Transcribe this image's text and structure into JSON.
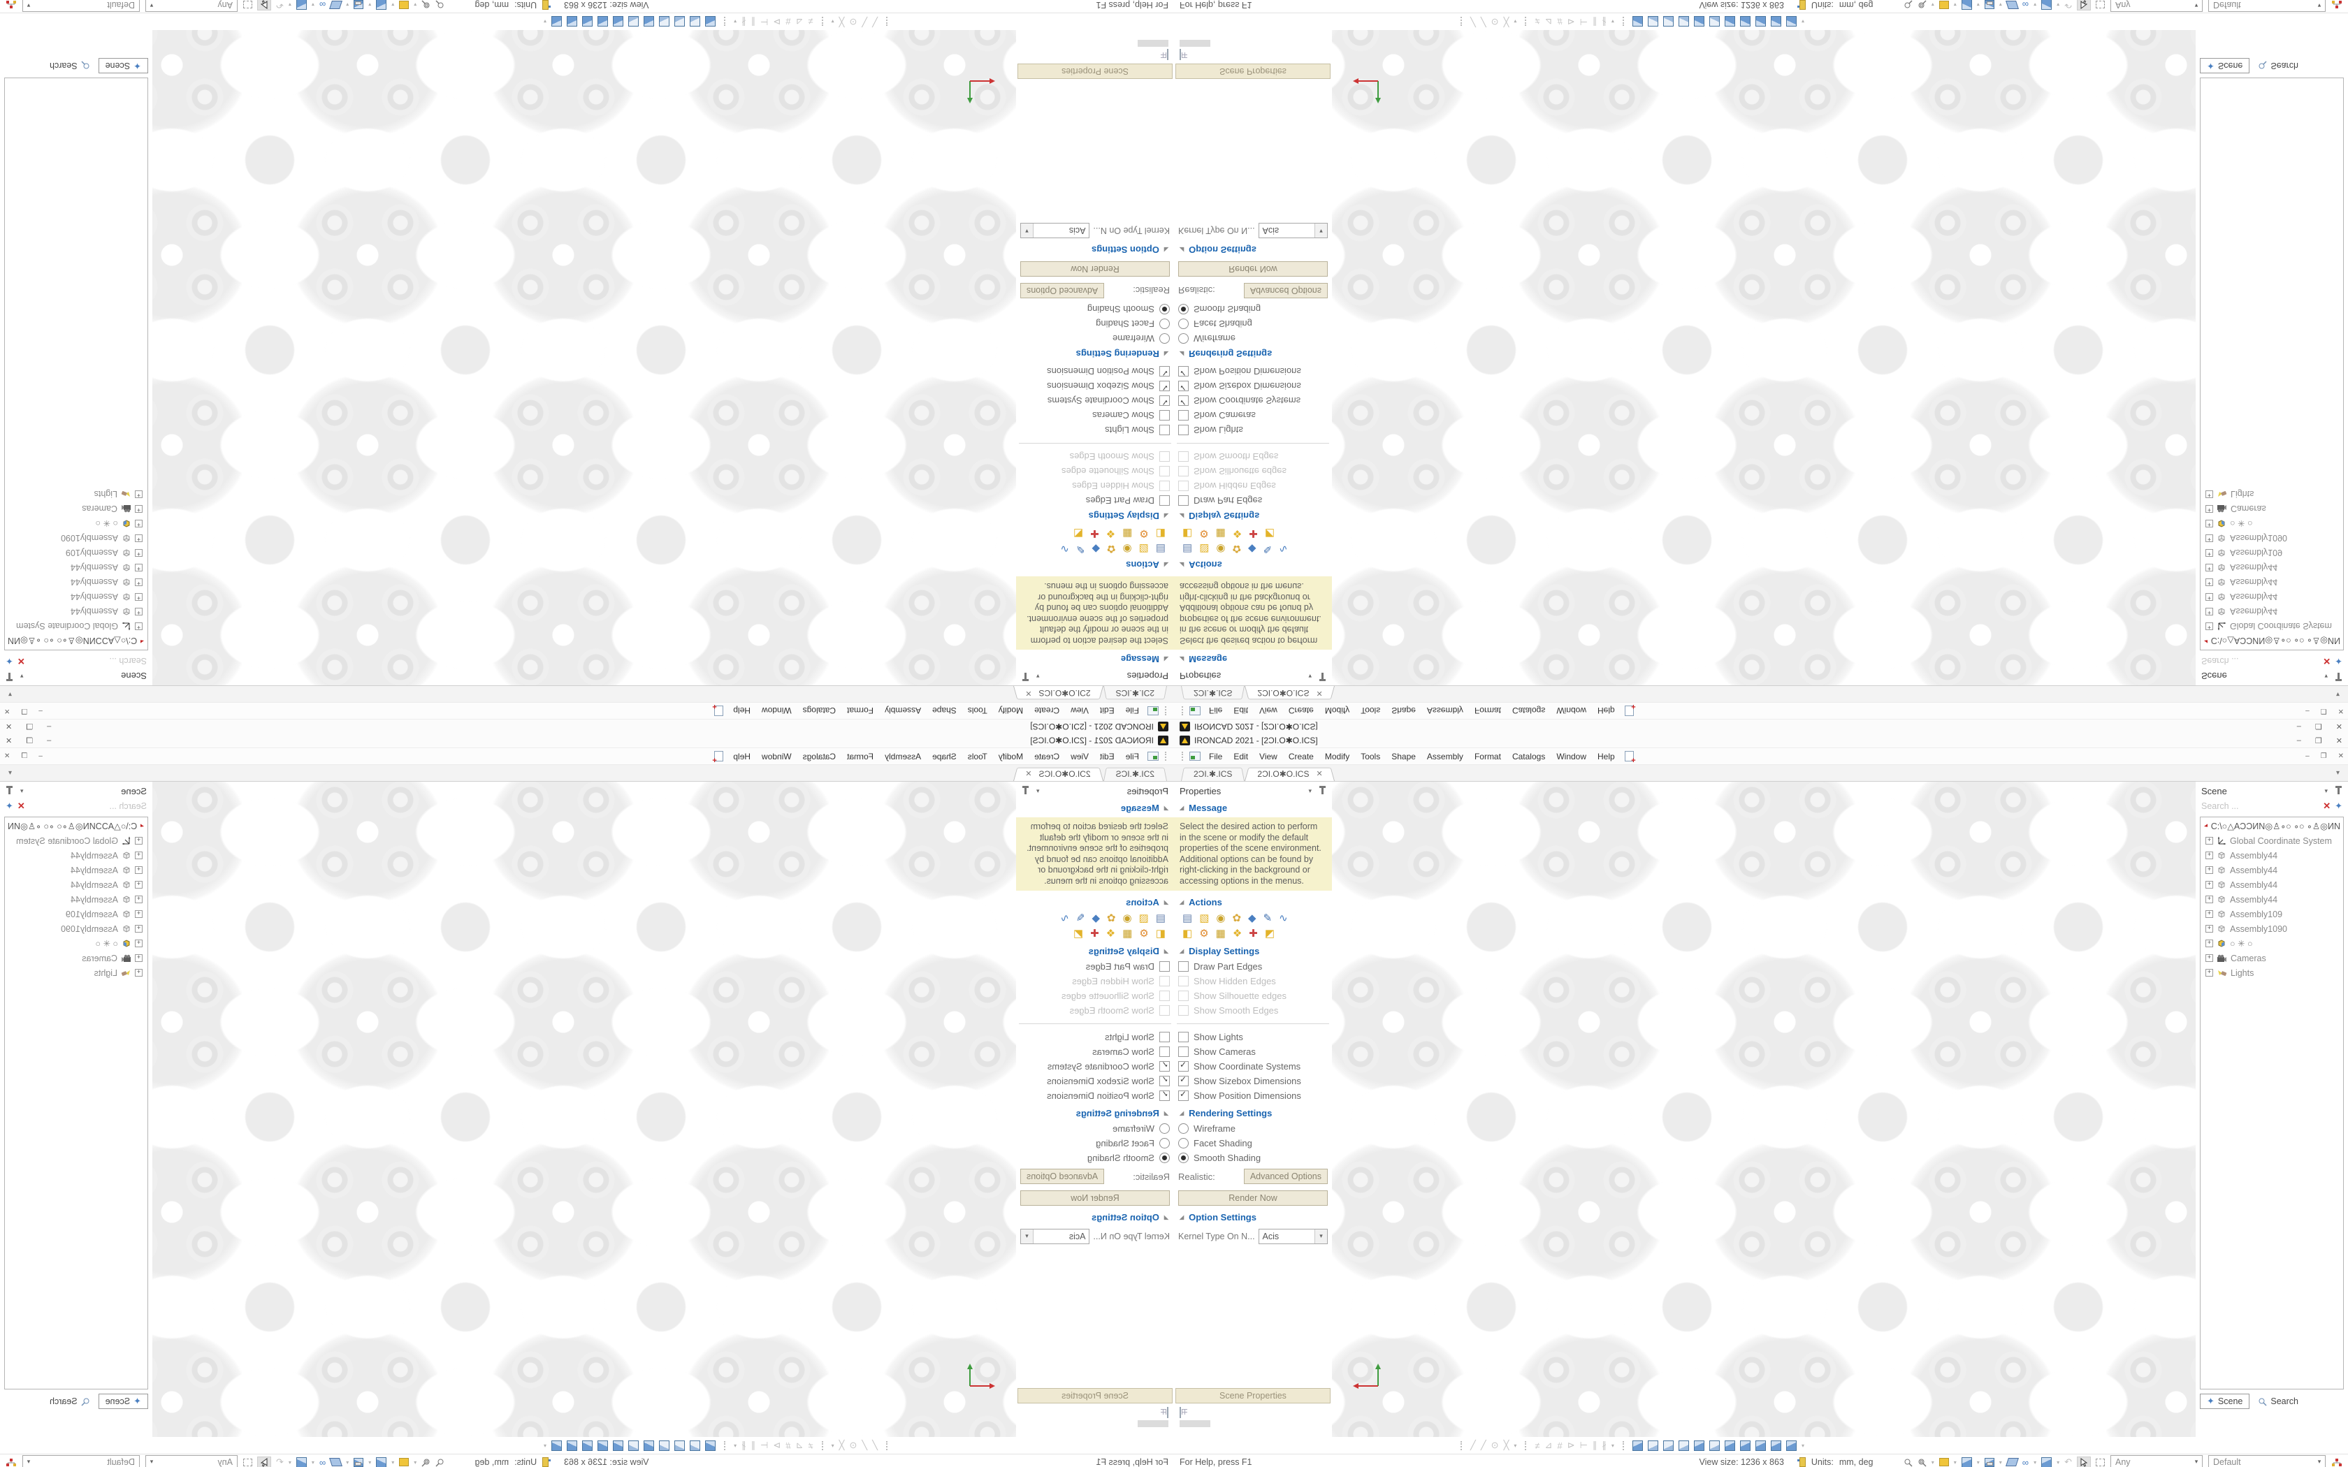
{
  "window": {
    "title": "IRONCAD 2021 - [2ƆI.O✱O.ICS]",
    "app_name": "IRONCAD 2021"
  },
  "glyphs": {
    "minimize": "–",
    "restore": "❐",
    "close": "✕",
    "dropdown": "▾",
    "section_arrow": "◢",
    "check": "✓",
    "expand": "+",
    "clear": "✕",
    "plus": "+",
    "undo": "↶",
    "glasses": "∞",
    "filter": "✦"
  },
  "menu": {
    "items": [
      "File",
      "Edit",
      "View",
      "Create",
      "Modify",
      "Tools",
      "Shape",
      "Assembly",
      "Format",
      "Catalogs",
      "Window",
      "Help"
    ]
  },
  "tabs": {
    "tab1": "2ƆI.✱.ICS",
    "tab2": "2ƆI.O✱O.ICS"
  },
  "properties": {
    "title": "Properties",
    "message": {
      "label": "Message",
      "text": "Select the desired action to perform in the scene or modify the default properties of the scene environment. Additional options can be found by right-clicking in the background or accessing options in the menus."
    },
    "actions": {
      "label": "Actions",
      "row1_glyphs": [
        "▤",
        "▧",
        "◉",
        "✿",
        "◆",
        "✎",
        "∿"
      ],
      "row1_names": [
        "scene-browser",
        "extrude-shape",
        "revolve-shape",
        "sweep-shape",
        "triball",
        "edit-sketch",
        "curve-graph"
      ],
      "row2_glyphs": [
        "◧",
        "⚙",
        "▦",
        "❖",
        "✚",
        "◩"
      ],
      "row2_names": [
        "render-setup",
        "mechanism-options",
        "parameter-table",
        "block-tools",
        "coordinate-system",
        "sheet-metal"
      ]
    },
    "display": {
      "label": "Display Settings",
      "items": [
        {
          "label": "Draw Part Edges",
          "checked": false,
          "disabled": false
        },
        {
          "label": "Show Hidden Edges",
          "checked": false,
          "disabled": true
        },
        {
          "label": "Show Silhouette edges",
          "checked": false,
          "disabled": true
        },
        {
          "label": "Show Smooth Edges",
          "checked": false,
          "disabled": true
        },
        {
          "label": "Show Lights",
          "checked": false,
          "disabled": false
        },
        {
          "label": "Show Cameras",
          "checked": false,
          "disabled": false
        },
        {
          "label": "Show Coordinate Systems",
          "checked": true,
          "disabled": false
        },
        {
          "label": "Show Sizebox Dimensions",
          "checked": true,
          "disabled": false
        },
        {
          "label": "Show Position Dimensions",
          "checked": true,
          "disabled": false
        }
      ]
    },
    "rendering": {
      "label": "Rendering Settings",
      "options": [
        {
          "label": "Wireframe",
          "selected": false
        },
        {
          "label": "Facet Shading",
          "selected": false
        },
        {
          "label": "Smooth Shading",
          "selected": true
        }
      ],
      "realistic_label": "Realistic:",
      "advanced_button": "Advanced Options",
      "render_button": "Render Now"
    },
    "options": {
      "label": "Option Settings",
      "kernel_label": "Kernel Type On N...",
      "kernel_value": "Acis"
    },
    "caption": "Scene Properties"
  },
  "scene": {
    "title": "Scene",
    "search_placeholder": "Search ...",
    "root_path": "C:\\○△AƆƆИN◎♙∘○ ∘○ ∘♙◎ИN",
    "items": [
      {
        "label": "Global Coordinate System",
        "icon": "coordinate-system-icon"
      },
      {
        "label": "Assembly44",
        "icon": "assembly-icon"
      },
      {
        "label": "Assembly44",
        "icon": "assembly-icon"
      },
      {
        "label": "Assembly44",
        "icon": "assembly-icon"
      },
      {
        "label": "Assembly44",
        "icon": "assembly-icon"
      },
      {
        "label": "Assembly109",
        "icon": "assembly-icon"
      },
      {
        "label": "Assembly1090",
        "icon": "assembly-icon"
      },
      {
        "label": "○ ✳ ○",
        "icon": "part-icon"
      },
      {
        "label": "Cameras",
        "icon": "cameras-icon"
      },
      {
        "label": "Lights",
        "icon": "lights-icon"
      }
    ],
    "tabs": [
      "Scene",
      "Search"
    ]
  },
  "bottom_toolbar": {
    "sketch_glyphs": [
      "╱",
      "╱",
      "⊙",
      "╳"
    ],
    "sketch_names": [
      "line-tool",
      "polyline-tool",
      "circle-tool",
      "ellipse-tool"
    ],
    "dim_glyphs": [
      "≠",
      "⊿",
      "#",
      "⊳",
      "⊢",
      "∥",
      "∦"
    ],
    "dim_names": [
      "hatch-tool",
      "edit-profile-tool",
      "grid-tool",
      "arrow-tool",
      "linear-dim-tool",
      "parallel-dim-tool",
      "angle-dim-tool"
    ],
    "view_cube_count": 11
  },
  "status": {
    "help": "For Help, press F1",
    "view_size": "View size: 1236 x 863",
    "units_label": "Units:",
    "units_value": "mm, deg",
    "filter_value": "Any",
    "config_value": "Default",
    "icon_names": [
      "zoom-in-icon",
      "zoom-window-icon",
      "camera-box-icon",
      "view-cube-icon",
      "save-view-icon",
      "shaded-face-icon",
      "glasses-icon",
      "cube-icon",
      "undo-view-icon",
      "select-cursor-icon",
      "box-select-icon",
      "config-network-icon"
    ]
  }
}
